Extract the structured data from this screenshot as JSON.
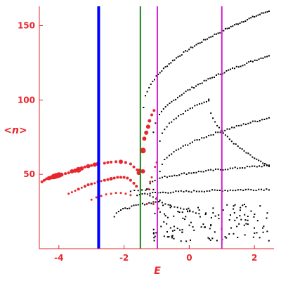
{
  "chart_data": {
    "type": "scatter",
    "title": "",
    "xlabel": "E",
    "ylabel": "<n>",
    "xlim": [
      -4.6,
      2.6
    ],
    "ylim": [
      0,
      163
    ],
    "grid": false,
    "colors": {
      "axis": "#e8262b",
      "background": "#ffffff",
      "black_points": "#000000",
      "red_points": "#e8262b"
    },
    "x_ticks": [
      -4,
      -2,
      0,
      2
    ],
    "x_tick_labels": [
      "-4",
      "-2",
      "0",
      "2"
    ],
    "y_ticks": [
      50,
      100,
      150
    ],
    "y_tick_labels": [
      "50",
      "100",
      "150"
    ],
    "vertical_lines": [
      {
        "x": -2.78,
        "color": "#0000ff",
        "width": "thick"
      },
      {
        "x": -1.5,
        "color": "#1f7f1f",
        "width": "normal"
      },
      {
        "x": -0.98,
        "color": "#cc22cc",
        "width": "normal"
      },
      {
        "x": 1.0,
        "color": "#cc22cc",
        "width": "normal"
      }
    ],
    "black_bands": [
      {
        "x_start": -1.4,
        "x_end": 2.45,
        "y_start": 95,
        "y_end": 160,
        "count": 70
      },
      {
        "x_start": -1.1,
        "x_end": 2.45,
        "y_start": 78,
        "y_end": 130,
        "count": 58
      },
      {
        "x_start": -0.9,
        "x_end": 0.6,
        "y_start": 72,
        "y_end": 100,
        "count": 22
      },
      {
        "x_start": 0.6,
        "x_end": 2.45,
        "y_start": 100,
        "y_end": 55,
        "count": 30
      },
      {
        "x_start": -0.9,
        "x_end": 2.45,
        "y_start": 52,
        "y_end": 88,
        "count": 48
      },
      {
        "x_start": -1.2,
        "x_end": 2.45,
        "y_start": 44,
        "y_end": 56,
        "count": 50
      },
      {
        "x_start": -1.6,
        "x_end": 2.45,
        "y_start": 36,
        "y_end": 40,
        "count": 52
      },
      {
        "x_start": -2.3,
        "x_end": -0.9,
        "y_start": 22,
        "y_end": 32,
        "count": 22
      },
      {
        "x_start": -1.3,
        "x_end": 0.3,
        "y_start": 40,
        "y_end": 24,
        "count": 18
      },
      {
        "x_start": -1.8,
        "x_end": -1.1,
        "y_start": 39,
        "y_end": 40,
        "count": 7
      }
    ],
    "black_cluster": {
      "x_start": -1.1,
      "x_end": 2.45,
      "y_start": 5,
      "y_end": 30,
      "count": 130
    },
    "red_series": [
      {
        "x": -4.52,
        "y": 45,
        "s": 2
      },
      {
        "x": -4.45,
        "y": 46,
        "s": 2
      },
      {
        "x": -4.38,
        "y": 47,
        "s": 2
      },
      {
        "x": -4.3,
        "y": 47.5,
        "s": 3
      },
      {
        "x": -4.22,
        "y": 48,
        "s": 3
      },
      {
        "x": -4.15,
        "y": 48.5,
        "s": 4
      },
      {
        "x": -4.08,
        "y": 49,
        "s": 4
      },
      {
        "x": -4.0,
        "y": 49.5,
        "s": 4
      },
      {
        "x": -3.92,
        "y": 49.8,
        "s": 3
      },
      {
        "x": -3.8,
        "y": 50.5,
        "s": 2
      },
      {
        "x": -3.7,
        "y": 51,
        "s": 2
      },
      {
        "x": -3.6,
        "y": 52,
        "s": 3
      },
      {
        "x": -3.5,
        "y": 52.5,
        "s": 3
      },
      {
        "x": -3.4,
        "y": 53,
        "s": 4
      },
      {
        "x": -3.3,
        "y": 54,
        "s": 3
      },
      {
        "x": -3.2,
        "y": 55,
        "s": 2
      },
      {
        "x": -3.1,
        "y": 55.5,
        "s": 3
      },
      {
        "x": -3.0,
        "y": 56,
        "s": 2
      },
      {
        "x": -2.9,
        "y": 56.5,
        "s": 3
      },
      {
        "x": -2.8,
        "y": 57,
        "s": 3
      },
      {
        "x": -2.6,
        "y": 57.5,
        "s": 2
      },
      {
        "x": -2.5,
        "y": 58,
        "s": 2
      },
      {
        "x": -2.4,
        "y": 58.2,
        "s": 2
      },
      {
        "x": -2.25,
        "y": 58.5,
        "s": 2
      },
      {
        "x": -2.1,
        "y": 58.5,
        "s": 3
      },
      {
        "x": -1.95,
        "y": 58,
        "s": 2
      },
      {
        "x": -1.8,
        "y": 57,
        "s": 2
      },
      {
        "x": -1.7,
        "y": 55,
        "s": 2
      },
      {
        "x": -1.6,
        "y": 53,
        "s": 2
      },
      {
        "x": -1.55,
        "y": 51,
        "s": 3
      },
      {
        "x": -3.7,
        "y": 37,
        "s": 1.5
      },
      {
        "x": -3.6,
        "y": 38,
        "s": 1.5
      },
      {
        "x": -3.5,
        "y": 39,
        "s": 1.5
      },
      {
        "x": -3.4,
        "y": 40,
        "s": 2
      },
      {
        "x": -3.3,
        "y": 41,
        "s": 1.5
      },
      {
        "x": -3.2,
        "y": 42,
        "s": 2
      },
      {
        "x": -3.1,
        "y": 43,
        "s": 2
      },
      {
        "x": -3.0,
        "y": 43.5,
        "s": 2
      },
      {
        "x": -2.9,
        "y": 44,
        "s": 1.5
      },
      {
        "x": -2.8,
        "y": 45,
        "s": 2
      },
      {
        "x": -2.7,
        "y": 45.5,
        "s": 1.5
      },
      {
        "x": -2.6,
        "y": 46,
        "s": 2
      },
      {
        "x": -2.5,
        "y": 46.5,
        "s": 2
      },
      {
        "x": -2.4,
        "y": 47,
        "s": 2.5
      },
      {
        "x": -2.3,
        "y": 47.5,
        "s": 2
      },
      {
        "x": -2.2,
        "y": 48,
        "s": 2
      },
      {
        "x": -2.1,
        "y": 48,
        "s": 2
      },
      {
        "x": -2.0,
        "y": 48,
        "s": 2
      },
      {
        "x": -1.9,
        "y": 47.5,
        "s": 2
      },
      {
        "x": -1.8,
        "y": 46,
        "s": 2
      },
      {
        "x": -1.7,
        "y": 44,
        "s": 2
      },
      {
        "x": -1.62,
        "y": 42,
        "s": 2
      },
      {
        "x": -3.0,
        "y": 33,
        "s": 1.5
      },
      {
        "x": -2.85,
        "y": 34.5,
        "s": 1.5
      },
      {
        "x": -2.7,
        "y": 35.5,
        "s": 1.5
      },
      {
        "x": -2.55,
        "y": 36.5,
        "s": 1.5
      },
      {
        "x": -2.4,
        "y": 37,
        "s": 1.5
      },
      {
        "x": -2.25,
        "y": 37.5,
        "s": 1.5
      },
      {
        "x": -2.1,
        "y": 37.5,
        "s": 1.5
      },
      {
        "x": -1.95,
        "y": 37,
        "s": 1.5
      },
      {
        "x": -1.8,
        "y": 36,
        "s": 1.5
      },
      {
        "x": -1.3,
        "y": 30,
        "s": 1.5
      },
      {
        "x": -1.25,
        "y": 40,
        "s": 1.5
      },
      {
        "x": -1.2,
        "y": 45,
        "s": 1.5
      },
      {
        "x": -1.15,
        "y": 48,
        "s": 1.5
      },
      {
        "x": -1.05,
        "y": 55,
        "s": 1.5
      },
      {
        "x": -1.0,
        "y": 58,
        "s": 1.5
      },
      {
        "x": -1.1,
        "y": 30,
        "s": 1.5
      },
      {
        "x": -1.0,
        "y": 34,
        "s": 1.5
      },
      {
        "x": -0.95,
        "y": 27,
        "s": 1.5
      },
      {
        "x": -1.42,
        "y": 52,
        "s": 3
      },
      {
        "x": -1.42,
        "y": 66,
        "s": 4
      },
      {
        "x": -1.38,
        "y": 74,
        "s": 3
      },
      {
        "x": -1.32,
        "y": 78,
        "s": 3
      },
      {
        "x": -1.26,
        "y": 82,
        "s": 3
      },
      {
        "x": -1.22,
        "y": 86,
        "s": 2.5
      },
      {
        "x": -1.15,
        "y": 90,
        "s": 2
      },
      {
        "x": -1.08,
        "y": 93,
        "s": 2
      },
      {
        "x": -1.52,
        "y": 52.5,
        "s": 3
      }
    ]
  }
}
